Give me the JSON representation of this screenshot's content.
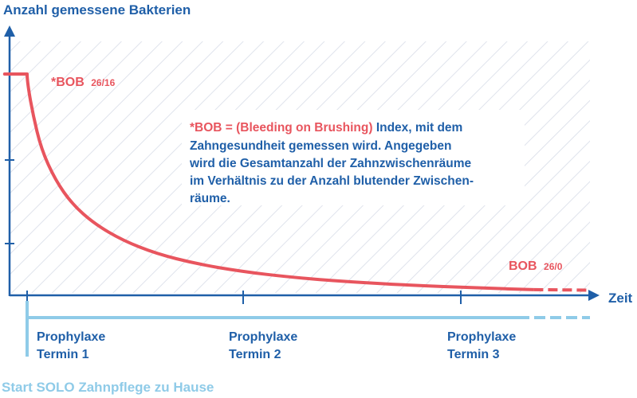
{
  "chart_data": {
    "type": "line",
    "y_axis_title": "Anzahl gemessene Bakterien",
    "x_axis_title": "Zeit",
    "series": [
      {
        "values_note": "",
        "points": [
          {
            "x": 0.0,
            "y": 1.0
          },
          {
            "x": 0.0,
            "y": 0.97
          },
          {
            "x": 0.01,
            "y": 0.82
          },
          {
            "x": 0.025,
            "y": 0.66
          },
          {
            "x": 0.05,
            "y": 0.52
          },
          {
            "x": 0.08,
            "y": 0.41
          },
          {
            "x": 0.12,
            "y": 0.32
          },
          {
            "x": 0.17,
            "y": 0.245
          },
          {
            "x": 0.23,
            "y": 0.185
          },
          {
            "x": 0.3,
            "y": 0.14
          },
          {
            "x": 0.38,
            "y": 0.105
          },
          {
            "x": 0.47,
            "y": 0.078
          },
          {
            "x": 0.57,
            "y": 0.058
          },
          {
            "x": 0.68,
            "y": 0.042
          },
          {
            "x": 0.8,
            "y": 0.03
          },
          {
            "x": 0.9,
            "y": 0.022
          }
        ],
        "initial_plateau": [
          {
            "x": -0.04,
            "y": 1.0
          },
          {
            "x": 0.0,
            "y": 1.0
          }
        ],
        "dashed_tail": [
          {
            "x": 0.9,
            "y": 0.022
          },
          {
            "x": 1.0,
            "y": 0.02
          }
        ],
        "color": "#e8555e"
      }
    ],
    "y_ticks": [
      "",
      "",
      ""
    ],
    "x_ticks": [
      "",
      "",
      ""
    ],
    "labels": {
      "bob_start": "*BOB",
      "bob_start_sub": "26/16",
      "bob_end": "BOB",
      "bob_end_sub": "26/0"
    },
    "annotation": {
      "highlight": "*BOB = (Bleeding on Brushing)",
      "lines": [
        " Index, mit dem",
        "Zahngesundheit gemessen wird. Angegeben",
        "wird die Gesamtanzahl der Zahnzwischenräume",
        "im Verhältnis zu der Anzahl blutender Zwischen-",
        "räume."
      ]
    },
    "timeline": {
      "appointments": [
        {
          "line1": "Prophylaxe",
          "line2": "Termin  1"
        },
        {
          "line1": "Prophylaxe",
          "line2": "Termin  2"
        },
        {
          "line1": "Prophylaxe",
          "line2": "Termin  3"
        }
      ],
      "start_label": "Start SOLO Zahnpflege zu Hause"
    },
    "colors": {
      "axis": "#1f5fa8",
      "curve": "#e8555e",
      "timeline": "#8fcbe8",
      "hatch": "#dfe3ec"
    }
  }
}
